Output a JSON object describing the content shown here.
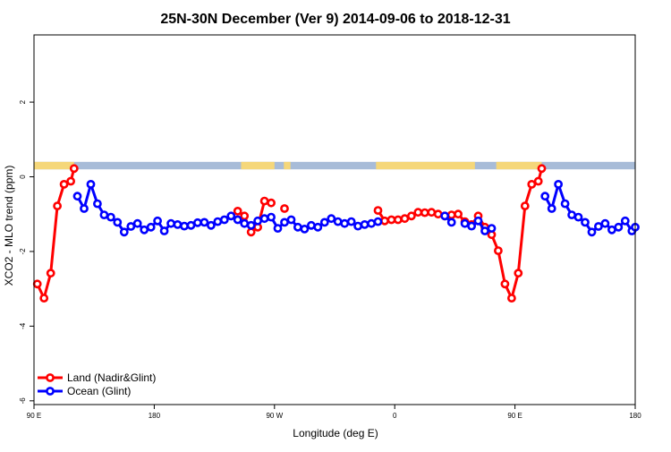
{
  "chart_data": {
    "type": "line",
    "title": "25N-30N December (Ver 9)   2014-09-06 to 2018-12-31",
    "xlabel": "Longitude (deg E)",
    "ylabel": "XCO2 - MLO trend (ppm)",
    "xlim": [
      90,
      540
    ],
    "ylim": [
      -6.1,
      3.8
    ],
    "x_ticks": [
      {
        "value": 90,
        "label": "90 E"
      },
      {
        "value": 180,
        "label": "180"
      },
      {
        "value": 270,
        "label": "90 W"
      },
      {
        "value": 360,
        "label": "0"
      },
      {
        "value": 450,
        "label": "90 E"
      },
      {
        "value": 540,
        "label": "180"
      }
    ],
    "y_ticks": [
      {
        "value": -6,
        "label": "-6"
      },
      {
        "value": -4,
        "label": "-4"
      },
      {
        "value": -2,
        "label": "-2"
      },
      {
        "value": 0,
        "label": "0"
      },
      {
        "value": 2,
        "label": "2"
      }
    ],
    "legend_position": "bottom-left",
    "colors": {
      "land": "#ff0000",
      "ocean": "#0000ff",
      "land_strip": "#f5d77a",
      "ocean_strip": "#a8bcd8"
    },
    "series": [
      {
        "name": "Land (Nadir&Glint)",
        "color": "#ff0000",
        "segments": [
          [
            [
              92.5,
              -2.87
            ],
            [
              97.5,
              -3.25
            ],
            [
              102.5,
              -2.58
            ],
            [
              107.5,
              -0.78
            ],
            [
              112.5,
              -0.2
            ],
            [
              117.5,
              -0.12
            ],
            [
              120,
              0.22
            ]
          ],
          [
            [
              242.5,
              -0.92
            ],
            [
              247.5,
              -1.05
            ],
            [
              252.5,
              -1.48
            ],
            [
              257.5,
              -1.35
            ],
            [
              262.5,
              -0.65
            ],
            [
              267.5,
              -0.7
            ]
          ],
          [
            [
              277.5,
              -0.85
            ]
          ],
          [
            [
              347.5,
              -0.9
            ],
            [
              352.5,
              -1.18
            ],
            [
              357.5,
              -1.15
            ],
            [
              362.5,
              -1.15
            ],
            [
              367.5,
              -1.12
            ],
            [
              372.5,
              -1.05
            ],
            [
              377.5,
              -0.95
            ],
            [
              382.5,
              -0.96
            ],
            [
              387.5,
              -0.95
            ],
            [
              392.5,
              -1.0
            ],
            [
              397.5,
              -1.05
            ],
            [
              402.5,
              -1.02
            ],
            [
              407.5,
              -1.0
            ],
            [
              412.5,
              -1.2
            ],
            [
              417.5,
              -1.28
            ],
            [
              422.5,
              -1.05
            ],
            [
              427.5,
              -1.35
            ],
            [
              432.5,
              -1.55
            ],
            [
              437.5,
              -1.98
            ],
            [
              442.5,
              -2.87
            ],
            [
              447.5,
              -3.25
            ],
            [
              452.5,
              -2.58
            ],
            [
              457.5,
              -0.78
            ],
            [
              462.5,
              -0.2
            ],
            [
              467.5,
              -0.12
            ],
            [
              470,
              0.22
            ]
          ]
        ]
      },
      {
        "name": "Ocean (Glint)",
        "color": "#0000ff",
        "segments": [
          [
            [
              122.5,
              -0.52
            ],
            [
              127.5,
              -0.85
            ],
            [
              132.5,
              -0.2
            ],
            [
              137.5,
              -0.72
            ],
            [
              142.5,
              -1.02
            ],
            [
              147.5,
              -1.08
            ],
            [
              152.5,
              -1.22
            ],
            [
              157.5,
              -1.48
            ],
            [
              162.5,
              -1.33
            ],
            [
              167.5,
              -1.25
            ],
            [
              172.5,
              -1.42
            ],
            [
              177.5,
              -1.35
            ],
            [
              182.5,
              -1.18
            ],
            [
              187.5,
              -1.45
            ],
            [
              192.5,
              -1.25
            ],
            [
              197.5,
              -1.28
            ],
            [
              202.5,
              -1.32
            ],
            [
              207.5,
              -1.3
            ],
            [
              212.5,
              -1.23
            ],
            [
              217.5,
              -1.22
            ],
            [
              222.5,
              -1.3
            ],
            [
              227.5,
              -1.2
            ],
            [
              232.5,
              -1.15
            ],
            [
              237.5,
              -1.05
            ],
            [
              242.5,
              -1.15
            ],
            [
              247.5,
              -1.25
            ],
            [
              252.5,
              -1.3
            ],
            [
              257.5,
              -1.18
            ],
            [
              262.5,
              -1.12
            ],
            [
              267.5,
              -1.08
            ],
            [
              272.5,
              -1.38
            ],
            [
              277.5,
              -1.22
            ],
            [
              282.5,
              -1.15
            ],
            [
              287.5,
              -1.35
            ],
            [
              292.5,
              -1.4
            ],
            [
              297.5,
              -1.3
            ],
            [
              302.5,
              -1.35
            ],
            [
              307.5,
              -1.22
            ],
            [
              312.5,
              -1.12
            ],
            [
              317.5,
              -1.2
            ],
            [
              322.5,
              -1.25
            ],
            [
              327.5,
              -1.2
            ],
            [
              332.5,
              -1.32
            ],
            [
              337.5,
              -1.28
            ],
            [
              342.5,
              -1.25
            ],
            [
              347.5,
              -1.2
            ]
          ],
          [
            [
              397.5,
              -1.05
            ],
            [
              402.5,
              -1.22
            ]
          ],
          [
            [
              412.5,
              -1.25
            ],
            [
              417.5,
              -1.32
            ],
            [
              422.5,
              -1.18
            ],
            [
              427.5,
              -1.45
            ],
            [
              432.5,
              -1.38
            ]
          ],
          [
            [
              472.5,
              -0.52
            ],
            [
              477.5,
              -0.85
            ],
            [
              482.5,
              -0.2
            ],
            [
              487.5,
              -0.72
            ],
            [
              492.5,
              -1.02
            ],
            [
              497.5,
              -1.08
            ],
            [
              502.5,
              -1.22
            ],
            [
              507.5,
              -1.48
            ],
            [
              512.5,
              -1.33
            ],
            [
              517.5,
              -1.25
            ],
            [
              522.5,
              -1.42
            ],
            [
              527.5,
              -1.35
            ],
            [
              532.5,
              -1.18
            ],
            [
              537.5,
              -1.45
            ],
            [
              540,
              -1.35
            ]
          ]
        ]
      }
    ],
    "land_ocean_strip": {
      "y_range": [
        0.2,
        0.4
      ],
      "land_intervals": [
        [
          90,
          120
        ],
        [
          245,
          270
        ],
        [
          277,
          282
        ],
        [
          346,
          420
        ],
        [
          436,
          470
        ]
      ]
    }
  }
}
